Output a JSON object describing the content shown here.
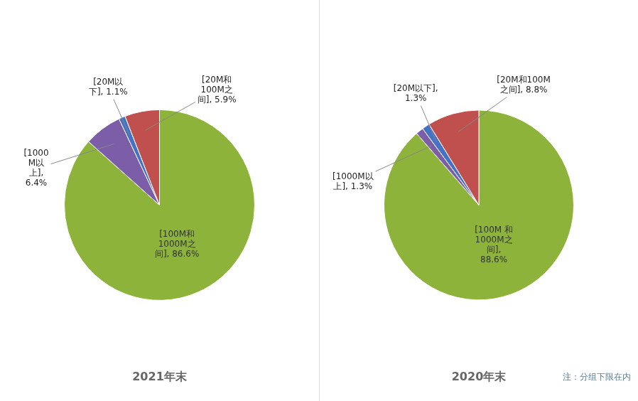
{
  "chart_data": [
    {
      "type": "pie",
      "title": "2021年末",
      "values": [
        86.6,
        6.4,
        1.1,
        5.9
      ],
      "value_labels": [
        "[100M和\n1000M之\n间], 86.6%",
        "[1000\nM以\n上],\n6.4%",
        "[20M以\n下], 1.1%",
        "[20M和\n100M之\n间], 5.9%"
      ],
      "colors": [
        "#8DB33A",
        "#7B5EA7",
        "#4472C4",
        "#C0504D"
      ],
      "data_labels": true
    },
    {
      "type": "pie",
      "title": "2020年末",
      "values": [
        88.6,
        1.3,
        1.3,
        8.8
      ],
      "value_labels": [
        "[100M 和\n1000M之\n间],\n88.6%",
        "[1000M以\n上], 1.3%",
        "[20M以下],\n1.3%",
        "[20M和100M\n之间], 8.8%"
      ],
      "colors": [
        "#8DB33A",
        "#7B5EA7",
        "#4472C4",
        "#C0504D"
      ],
      "data_labels": true,
      "annotations": [
        "注：分组下限在内"
      ]
    }
  ]
}
